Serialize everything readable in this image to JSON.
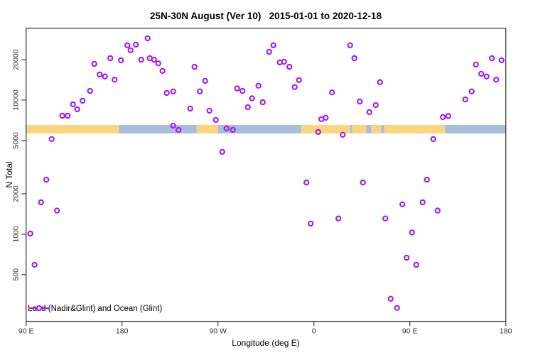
{
  "title": "25N-30N August (Ver 10)   2015-01-01 to 2020-12-18",
  "chart_data": {
    "type": "scatter",
    "title": "25N-30N August (Ver 10)   2015-01-01 to 2020-12-18",
    "xlabel": "Longitude (deg E)",
    "ylabel": "N Total",
    "y_scale": "log10",
    "grid": "off",
    "x_axis": {
      "min": 90,
      "max": 540,
      "note": "longitude unwrapped eastward from 90E through 180, 90W, 0, 90E to 180",
      "ticks": [
        {
          "value": 90,
          "label": "90 E"
        },
        {
          "value": 180,
          "label": "180"
        },
        {
          "value": 270,
          "label": "90 W"
        },
        {
          "value": 360,
          "label": "0"
        },
        {
          "value": 450,
          "label": "90 E"
        },
        {
          "value": 540,
          "label": "180"
        }
      ]
    },
    "y_axis": {
      "min": 224,
      "max": 34350,
      "ticks": [
        {
          "value": 500,
          "label": "500"
        },
        {
          "value": 1000,
          "label": "1000"
        },
        {
          "value": 2000,
          "label": "2000"
        },
        {
          "value": 5000,
          "label": "5000"
        },
        {
          "value": 10000,
          "label": "10000"
        },
        {
          "value": 20000,
          "label": "20000"
        }
      ]
    },
    "legend": {
      "label": "Land (Nadir&Glint) and Ocean (Glint)",
      "position": "bottom-left-inside"
    },
    "colors": {
      "marker": "#A51FF0",
      "land_band": "#FBD57E",
      "ocean_band": "#A9BEDB",
      "axis": "#3C3C3C",
      "tick_text": "#333333"
    },
    "surface_band": {
      "top_value": 6530,
      "bottom_value": 5640,
      "segments": [
        {
          "from": 90,
          "to": 177,
          "type": "land"
        },
        {
          "from": 177,
          "to": 250,
          "type": "ocean"
        },
        {
          "from": 250,
          "to": 270,
          "type": "land"
        },
        {
          "from": 270,
          "to": 348,
          "type": "ocean"
        },
        {
          "from": 348,
          "to": 394,
          "type": "land"
        },
        {
          "from": 394,
          "to": 396,
          "type": "ocean"
        },
        {
          "from": 396,
          "to": 409,
          "type": "land"
        },
        {
          "from": 409,
          "to": 414,
          "type": "ocean"
        },
        {
          "from": 414,
          "to": 423,
          "type": "land"
        },
        {
          "from": 423,
          "to": 426,
          "type": "ocean"
        },
        {
          "from": 426,
          "to": 483,
          "type": "land"
        },
        {
          "from": 483,
          "to": 540,
          "type": "ocean"
        }
      ]
    },
    "series": [
      {
        "name": "Land (Nadir&Glint) and Ocean (Glint)",
        "marker": "open-circle",
        "points_format": [
          "lon_axis_degE_unwrapped",
          "n_total"
        ],
        "points": [
          [
            124,
            7640
          ],
          [
            129,
            7640
          ],
          [
            134,
            9290
          ],
          [
            138,
            8530
          ],
          [
            143,
            9880
          ],
          [
            150,
            11700
          ],
          [
            154,
            18600
          ],
          [
            159,
            15500
          ],
          [
            164,
            15000
          ],
          [
            169,
            20500
          ],
          [
            173,
            14200
          ],
          [
            179,
            19800
          ],
          [
            185,
            25600
          ],
          [
            188,
            23500
          ],
          [
            193,
            25900
          ],
          [
            198,
            20000
          ],
          [
            204,
            28900
          ],
          [
            206,
            20500
          ],
          [
            210,
            20000
          ],
          [
            214,
            18800
          ],
          [
            218,
            16500
          ],
          [
            222,
            11300
          ],
          [
            228,
            11600
          ],
          [
            228,
            6450
          ],
          [
            233,
            5990
          ],
          [
            248,
            17700
          ],
          [
            258,
            13900
          ],
          [
            253,
            11600
          ],
          [
            244,
            8640
          ],
          [
            262,
            8330
          ],
          [
            268,
            7110
          ],
          [
            278,
            6140
          ],
          [
            284,
            5990
          ],
          [
            288,
            12200
          ],
          [
            293,
            11700
          ],
          [
            308,
            12800
          ],
          [
            302,
            10300
          ],
          [
            298,
            8850
          ],
          [
            312,
            9640
          ],
          [
            322,
            25600
          ],
          [
            318,
            22900
          ],
          [
            328,
            19100
          ],
          [
            332,
            19300
          ],
          [
            337,
            17700
          ],
          [
            346,
            14100
          ],
          [
            342,
            12500
          ],
          [
            377,
            11400
          ],
          [
            367,
            7200
          ],
          [
            371,
            7380
          ],
          [
            364,
            5780
          ],
          [
            394,
            25600
          ],
          [
            398,
            20500
          ],
          [
            422,
            13600
          ],
          [
            403,
            9750
          ],
          [
            418,
            9180
          ],
          [
            412,
            8130
          ],
          [
            481,
            7470
          ],
          [
            486,
            7600
          ],
          [
            502,
            10100
          ],
          [
            508,
            11600
          ],
          [
            512,
            18400
          ],
          [
            517,
            15700
          ],
          [
            522,
            15000
          ],
          [
            531,
            14200
          ],
          [
            527,
            20500
          ],
          [
            536,
            19800
          ],
          [
            114,
            5120
          ],
          [
            109,
            2550
          ],
          [
            104,
            1730
          ],
          [
            119,
            1500
          ],
          [
            94,
            1010
          ],
          [
            98,
            592
          ],
          [
            274,
            4110
          ],
          [
            353,
            2430
          ],
          [
            357,
            1200
          ],
          [
            383,
            1310
          ],
          [
            387,
            5510
          ],
          [
            472,
            5120
          ],
          [
            406,
            2430
          ],
          [
            466,
            2550
          ],
          [
            443,
            1670
          ],
          [
            462,
            1730
          ],
          [
            476,
            1500
          ],
          [
            427,
            1310
          ],
          [
            452,
            1030
          ],
          [
            447,
            668
          ],
          [
            456,
            592
          ],
          [
            432,
            330
          ],
          [
            438,
            282
          ]
        ]
      }
    ]
  }
}
